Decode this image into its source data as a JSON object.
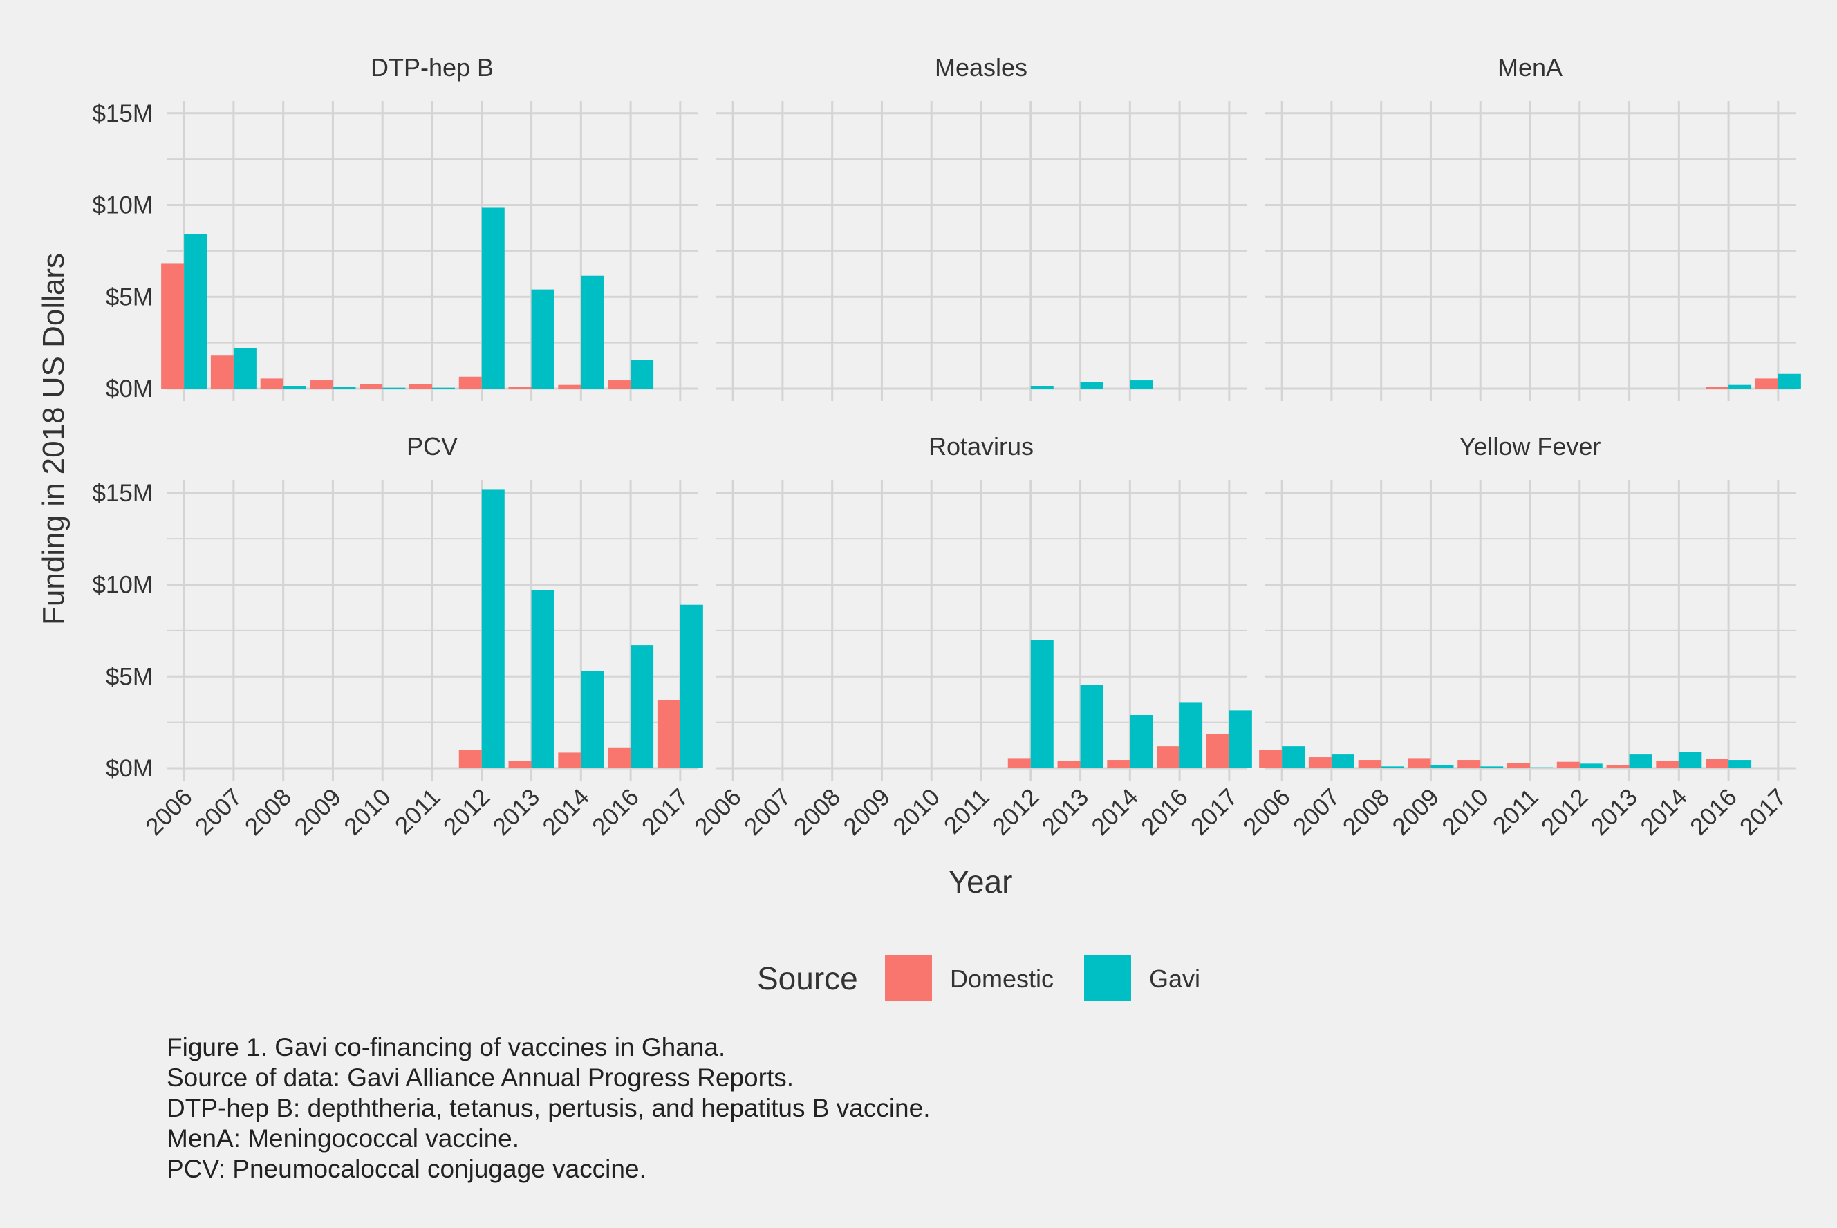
{
  "chart_data": {
    "type": "bar",
    "ylabel": "Funding in 2018 US Dollars",
    "xlabel": "Year",
    "categories": [
      "2006",
      "2007",
      "2008",
      "2009",
      "2010",
      "2011",
      "2012",
      "2013",
      "2014",
      "2016",
      "2017"
    ],
    "y_ticks": [
      "$0M",
      "$5M",
      "$10M",
      "$15M"
    ],
    "y_tick_values": [
      0,
      5,
      10,
      15
    ],
    "ylim": [
      0,
      16
    ],
    "grid": true,
    "legend": {
      "title": "Source",
      "placement": "bottom",
      "items": [
        {
          "name": "Domestic",
          "color": "#F8766D"
        },
        {
          "name": "Gavi",
          "color": "#00BFC4"
        }
      ]
    },
    "panels": [
      {
        "title": "DTP-hep B",
        "series": [
          {
            "name": "Domestic",
            "values": [
              6.8,
              1.8,
              0.55,
              0.45,
              0.25,
              0.25,
              0.65,
              0.1,
              0.2,
              0.45,
              0
            ]
          },
          {
            "name": "Gavi",
            "values": [
              8.4,
              2.2,
              0.15,
              0.1,
              0.05,
              0.05,
              9.85,
              5.4,
              6.15,
              1.55,
              0
            ]
          }
        ]
      },
      {
        "title": "Measles",
        "series": [
          {
            "name": "Domestic",
            "values": [
              0,
              0,
              0,
              0,
              0,
              0,
              0,
              0,
              0,
              0,
              0
            ]
          },
          {
            "name": "Gavi",
            "values": [
              0,
              0,
              0,
              0,
              0,
              0,
              0.15,
              0.35,
              0.45,
              0,
              0
            ]
          }
        ]
      },
      {
        "title": "MenA",
        "series": [
          {
            "name": "Domestic",
            "values": [
              0,
              0,
              0,
              0,
              0,
              0,
              0,
              0,
              0,
              0.1,
              0.55
            ]
          },
          {
            "name": "Gavi",
            "values": [
              0,
              0,
              0,
              0,
              0,
              0,
              0,
              0,
              0,
              0.2,
              0.8
            ]
          }
        ]
      },
      {
        "title": "PCV",
        "series": [
          {
            "name": "Domestic",
            "values": [
              0,
              0,
              0,
              0,
              0,
              0,
              1.0,
              0.4,
              0.85,
              1.1,
              3.7
            ]
          },
          {
            "name": "Gavi",
            "values": [
              0,
              0,
              0,
              0,
              0,
              0,
              15.2,
              9.7,
              5.3,
              6.7,
              8.9
            ]
          }
        ]
      },
      {
        "title": "Rotavirus",
        "series": [
          {
            "name": "Domestic",
            "values": [
              0,
              0,
              0,
              0,
              0,
              0,
              0.55,
              0.4,
              0.45,
              1.2,
              1.85
            ]
          },
          {
            "name": "Gavi",
            "values": [
              0,
              0,
              0,
              0,
              0,
              0,
              7.0,
              4.55,
              2.9,
              3.6,
              3.15
            ]
          }
        ]
      },
      {
        "title": "Yellow Fever",
        "series": [
          {
            "name": "Domestic",
            "values": [
              1.0,
              0.6,
              0.45,
              0.55,
              0.45,
              0.3,
              0.35,
              0.15,
              0.4,
              0.5,
              0
            ]
          },
          {
            "name": "Gavi",
            "values": [
              1.2,
              0.75,
              0.1,
              0.15,
              0.1,
              0.05,
              0.25,
              0.75,
              0.9,
              0.45,
              0
            ]
          }
        ]
      }
    ]
  },
  "caption": [
    "Figure 1. Gavi co-financing of vaccines in Ghana.",
    "Source of data: Gavi Alliance Annual Progress Reports.",
    "DTP-hep B: depththeria, tetanus, pertusis, and hepatitus B vaccine.",
    "MenA: Meningococcal vaccine.",
    "PCV: Pneumocaloccal conjugage vaccine."
  ]
}
